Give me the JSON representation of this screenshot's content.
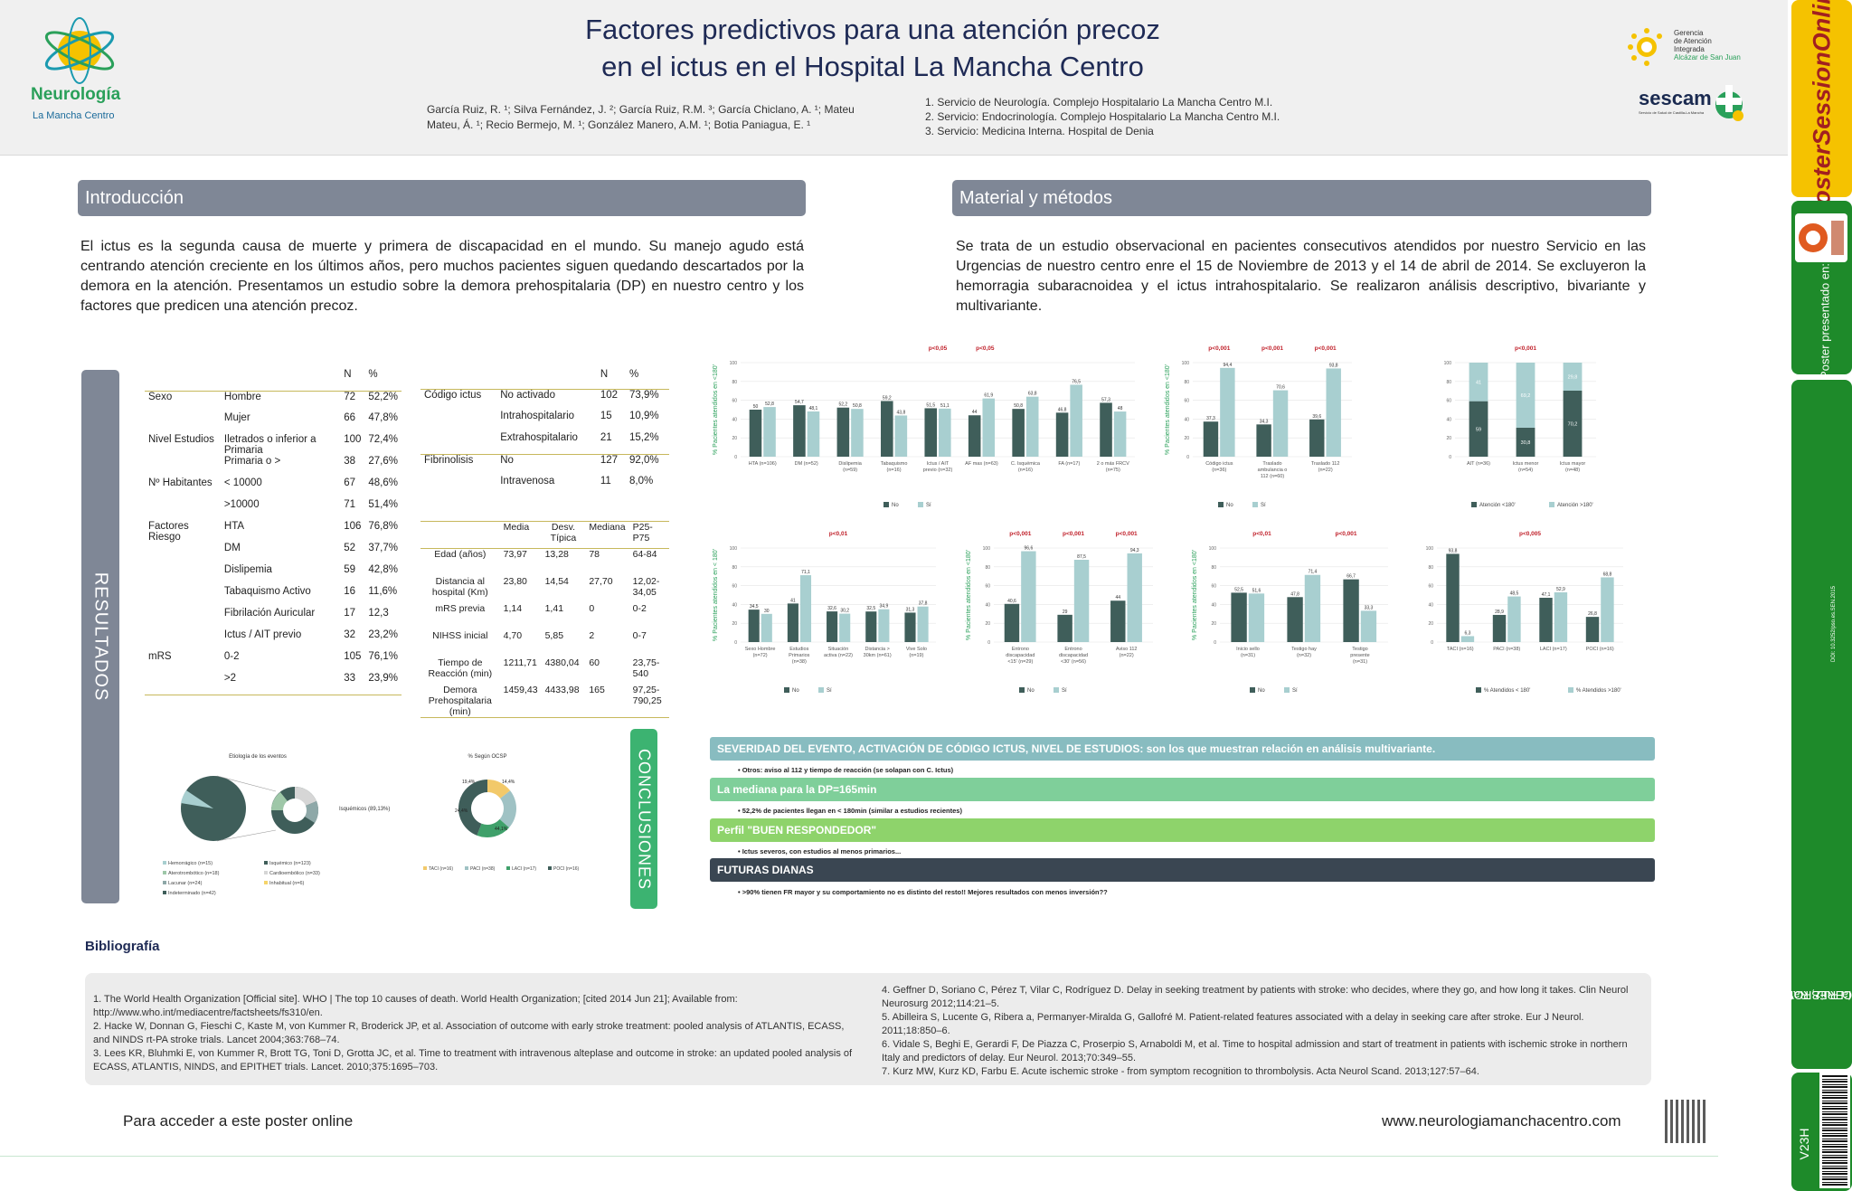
{
  "header": {
    "title_l1": "Factores predictivos para una atención precoz",
    "title_l2": "en el ictus en el Hospital La Mancha Centro",
    "authors": "García Ruiz, R. ¹; Silva Fernández, J. ²; García Ruiz, R.M. ³; García Chiclano, A. ¹; Mateu Mateu, Á. ¹; Recio Bermejo, M. ¹; González Manero, A.M. ¹; Botia Paniagua, E. ¹",
    "affil1": "1. Servicio de Neurología. Complejo Hospitalario La Mancha Centro M.I.",
    "affil2": "2. Servicio: Endocrinología. Complejo Hospitalario La Mancha Centro M.I.",
    "affil3": "3. Servicio: Medicina Interna. Hospital de Denia",
    "logo_left_word": "Neurología",
    "logo_left_sub": "La Mancha Centro",
    "logo_right_l1": "Gerencia",
    "logo_right_l2": "de Atención",
    "logo_right_l3": "Integrada",
    "logo_right_l4": "Alcázar de San Juan",
    "logo_sescam": "sescam",
    "logo_sescam_sub": "Servicio de Salud de Castilla-La Mancha"
  },
  "rail": {
    "brand": "PosterSessionOnline",
    "brand_tld": ".com",
    "presented": "Poster presentado en:",
    "category": "ENFERMEDADES CEREBROVASCULARES P6",
    "author": "García Ruiz, Rafael",
    "doi": "DOI: 10.3252/pso.es.SEN.2015",
    "code": "V23H",
    "code_bottom": "P6Fasen"
  },
  "intro": {
    "title": "Introducción",
    "text": "El ictus es la segunda causa de muerte y primera de discapacidad en el mundo. Su manejo agudo está centrando atención creciente en los últimos años, pero muchos pacientes siguen quedando descartados por la demora en la atención. Presentamos un estudio sobre la demora prehospitalaria (DP) en nuestro centro y los factores que predicen una atención precoz."
  },
  "methods": {
    "title": "Material y métodos",
    "text": "Se trata de un estudio observacional en pacientes consecutivos atendidos por nuestro Servicio en las Urgencias de nuestro centro enre el 15 de Noviembre de 2013 y el 14 de abril de 2014. Se excluyeron la hemorragia subaracnoidea y el ictus intrahospitalario. Se realizaron análisis descriptivo, bivariante y multivariante."
  },
  "results": {
    "title": "RESULTADOS"
  },
  "table1": {
    "headers": [
      "",
      "",
      "N",
      "%"
    ],
    "rows": [
      [
        "Sexo",
        "Hombre",
        "72",
        "52,2%"
      ],
      [
        "",
        "Mujer",
        "66",
        "47,8%"
      ],
      [
        "Nivel Estudios",
        "Iletrados o inferior a Primaria",
        "100",
        "72,4%"
      ],
      [
        "",
        "Primaria o >",
        "38",
        "27,6%"
      ],
      [
        "Nº Habitantes",
        "< 10000",
        "67",
        "48,6%"
      ],
      [
        "",
        ">10000",
        "71",
        "51,4%"
      ],
      [
        "Factores Riesgo",
        "HTA",
        "106",
        "76,8%"
      ],
      [
        "",
        "DM",
        "52",
        "37,7%"
      ],
      [
        "",
        "Dislipemia",
        "59",
        "42,8%"
      ],
      [
        "",
        "Tabaquismo Activo",
        "16",
        "11,6%"
      ],
      [
        "",
        "Fibrilación Auricular",
        "17",
        "12,3"
      ],
      [
        "",
        "Ictus / AIT previo",
        "32",
        "23,2%"
      ],
      [
        "mRS",
        "0-2",
        "105",
        "76,1%"
      ],
      [
        "",
        ">2",
        "33",
        "23,9%"
      ]
    ]
  },
  "table2": {
    "headers": [
      "",
      "",
      "N",
      "%"
    ],
    "rows": [
      [
        "Código ictus",
        "No activado",
        "102",
        "73,9%"
      ],
      [
        "",
        "Intrahospitalario",
        "15",
        "10,9%"
      ],
      [
        "",
        "Extrahospitalario",
        "21",
        "15,2%"
      ],
      [
        "Fibrinolisis",
        "No",
        "127",
        "92,0%"
      ],
      [
        "",
        "Intravenosa",
        "11",
        "8,0%"
      ]
    ]
  },
  "table3": {
    "headers": [
      "",
      "Media",
      "Desv. Típica",
      "Mediana",
      "P25-P75"
    ],
    "rows": [
      [
        "Edad (años)",
        "73,97",
        "13,28",
        "78",
        "64-84"
      ],
      [
        "Distancia al hospital (Km)",
        "23,80",
        "14,54",
        "27,70",
        "12,02-34,05"
      ],
      [
        "mRS previa",
        "1,14",
        "1,41",
        "0",
        "0-2"
      ],
      [
        "NIHSS inicial",
        "4,70",
        "5,85",
        "2",
        "0-7"
      ],
      [
        "Tiempo de Reacción (min)",
        "1211,71",
        "4380,04",
        "60",
        "23,75-540"
      ],
      [
        "Demora Prehospitalaria (min)",
        "1459,43",
        "4433,98",
        "165",
        "97,25-790,25"
      ]
    ]
  },
  "pies": {
    "pie1_title": "Etiología de los eventos",
    "pie1_side": "Isquémicos (89,13%)",
    "pie1_legend": [
      "Hemorrágico (n=15)",
      "Isquémico (n=123)",
      "Aterotrombótico (n=18)",
      "Cardioembólico (n=33)",
      "Lacunar (n=24)",
      "Inhabitual (n=6)",
      "Indeterminado (n=42)"
    ],
    "pie2_title": "% Según OCSP",
    "pie2_values": [
      "19,4%",
      "14,4%",
      "24,4%",
      "44,1%"
    ],
    "pie2_legend": [
      "TACI (n=16)",
      "PACI (n=38)",
      "LACI (n=17)",
      "POCI (n=16)"
    ]
  },
  "chart_data": [
    {
      "type": "bar",
      "id": "c1",
      "ylabel": "% Pacientes atendidos en <180'",
      "categories": [
        "HTA (n=106)",
        "DM (n=52)",
        "Dislipemia (n=59)",
        "Tabaquismo (n=16)",
        "Ictus / AIT previo (n=32)",
        "AF mas (n=63)",
        "C. Isquémica (n=16)",
        "FA (n=17)",
        "2 o más FRCV (n=75)"
      ],
      "series": [
        {
          "name": "No",
          "values": [
            50,
            54.7,
            52.2,
            59.2,
            51.5,
            44,
            50.8,
            46.8,
            57.3
          ]
        },
        {
          "name": "Sí",
          "values": [
            52.8,
            48.1,
            50.8,
            43.8,
            51.1,
            61.9,
            63.8,
            76.5,
            48
          ]
        }
      ],
      "annotations": [
        "p<0,05",
        "p<0,05"
      ],
      "ylim": [
        0,
        100
      ]
    },
    {
      "type": "bar",
      "id": "c2",
      "ylabel": "% Pacientes atendidos en <180'",
      "categories": [
        "Código ictus (n=36)",
        "Traslado ambulancia o 112 (n=60)",
        "Traslado 112 (n=22)"
      ],
      "series": [
        {
          "name": "No",
          "values": [
            37.3,
            34.3,
            39.6
          ]
        },
        {
          "name": "Sí",
          "values": [
            94.4,
            70.6,
            93.8
          ]
        }
      ],
      "annotations": [
        "p<0,001",
        "p<0,001",
        "p<0,001"
      ],
      "ylim": [
        0,
        100
      ]
    },
    {
      "type": "bar",
      "id": "c3",
      "stacked": true,
      "categories": [
        "AIT (n=36)",
        "Ictus menor (n=54)",
        "Ictus mayor (n=48)"
      ],
      "series": [
        {
          "name": "Atención <180'",
          "values": [
            59,
            30.8,
            70.2
          ]
        },
        {
          "name": "Atención >180'",
          "values": [
            41,
            69.2,
            29.8
          ]
        }
      ],
      "annotations": [
        "p<0,001"
      ],
      "ylim": [
        0,
        100
      ]
    },
    {
      "type": "bar",
      "id": "c4",
      "ylabel": "% Pacientes atendidos en < 180'",
      "categories": [
        "Sexo Hombre (n=72)",
        "Estudios Primarios (n=38)",
        "Situación activa (n=22)",
        "Distancia > 30km (n=61)",
        "Vive Solo (n=19)"
      ],
      "series": [
        {
          "name": "No",
          "values": [
            34.5,
            41,
            32.6,
            32.5,
            31.3
          ]
        },
        {
          "name": "Sí",
          "values": [
            30,
            71.1,
            30.2,
            34.9,
            37.8
          ]
        }
      ],
      "annotations": [
        "p<0,01"
      ],
      "ylim": [
        0,
        100
      ]
    },
    {
      "type": "bar",
      "id": "c5",
      "ylabel": "% Pacientes atendidos en <180'",
      "categories": [
        "Entrono discapacidad <15' (n=29)",
        "Entrono discapacidad <30' (n=56)",
        "Aviso 112 (n=22)"
      ],
      "series": [
        {
          "name": "No",
          "values": [
            40.6,
            29,
            44
          ]
        },
        {
          "name": "Sí",
          "values": [
            96.6,
            87.5,
            94.3
          ]
        }
      ],
      "annotations": [
        "p<0,001",
        "p<0,001",
        "p<0,001"
      ],
      "ylim": [
        0,
        100
      ]
    },
    {
      "type": "bar",
      "id": "c6",
      "ylabel": "% Pacientes atendidos en <180'",
      "categories": [
        "Inicio sello (n=31)",
        "Testigo hay (n=32)",
        "Testigo presente (n=31)"
      ],
      "series": [
        {
          "name": "No",
          "values": [
            52.5,
            47.8,
            66.7
          ]
        },
        {
          "name": "Sí",
          "values": [
            51.6,
            71.4,
            33.3
          ]
        }
      ],
      "annotations": [
        "p<0,01",
        "p<0,001"
      ],
      "ylim": [
        0,
        100
      ]
    },
    {
      "type": "bar",
      "id": "c7",
      "stacked": false,
      "categories": [
        "TACI (n=16)",
        "PACI (n=38)",
        "LACI (n=17)",
        "POCI (n=16)"
      ],
      "series": [
        {
          "name": "% Atendidos < 180'",
          "values": [
            93.8,
            28.9,
            47.1,
            26.8
          ]
        },
        {
          "name": "% Atendidos >180'",
          "values": [
            6.3,
            48.5,
            52.9,
            68.8
          ]
        }
      ],
      "annotations": [
        "p<0,005"
      ],
      "ylim": [
        0,
        100
      ]
    }
  ],
  "conclusions": {
    "title": "CONCLUSIONES",
    "bar1": "SEVERIDAD DEL EVENTO, ACTIVACIÓN DE CÓDIGO ICTUS, NIVEL DE ESTUDIOS: son los que muestran relación en análisis multivariante.",
    "sub1": "Otros: aviso al 112 y tiempo de reacción (se solapan con C. Ictus)",
    "bar2": "La mediana para la DP=165min",
    "sub2": "52,2% de pacientes llegan en < 180min (similar a estudios recientes)",
    "bar3": "Perfil \"BUEN RESPONDEDOR\"",
    "sub3": "Ictus severos, con estudios al menos primarios...",
    "bar4": "FUTURAS DIANAS",
    "sub4": ">90% tienen FR mayor y su comportamiento no es distinto del resto!! Mejores resultados con menos inversión??",
    "color1": "#88bcc0",
    "color2": "#7fcf9a",
    "color3": "#8ed36b",
    "color4": "#3a4652"
  },
  "bibliography": {
    "title": "Bibliografía",
    "left": [
      "1. The World Health Organization [Official site]. WHO | The top 10 causes of death. World Health Organization; [cited 2014 Jun 21]; Available from: http://www.who.int/mediacentre/factsheets/fs310/en.",
      "2. Hacke W, Donnan G, Fieschi C, Kaste M, von Kummer R, Broderick JP, et al. Association of outcome with early stroke treatment: pooled analysis of ATLANTIS, ECASS, and NINDS rt-PA stroke trials. Lancet 2004;363:768–74.",
      "3. Lees KR, Bluhmki E, von Kummer R, Brott TG, Toni D, Grotta JC, et al. Time to treatment with intravenous alteplase and outcome in stroke: an updated pooled analysis of ECASS, ATLANTIS, NINDS, and EPITHET trials. Lancet. 2010;375:1695–703."
    ],
    "right": [
      "4. Geffner D, Soriano C, Pérez T, Vilar C, Rodríguez D. Delay in seeking treatment by patients with stroke: who decides, where they go, and how long it takes. Clin Neurol Neurosurg 2012;114:21–5.",
      "5. Abilleira S, Lucente G, Ribera a, Permanyer-Miralda G, Gallofré M. Patient-related features associated with a delay in seeking care after stroke. Eur J Neurol. 2011;18:850–6.",
      "6. Vidale S, Beghi E, Gerardi F, De Piazza C, Proserpio S, Arnaboldi M, et al. Time to hospital admission and start of treatment in patients with ischemic stroke in northern Italy and predictors of delay. Eur Neurol. 2013;70:349–55.",
      "7. Kurz MW, Kurz KD, Farbu E. Acute ischemic stroke - from symptom recognition to thrombolysis. Acta Neurol Scand. 2013;127:57–64."
    ]
  },
  "footer": {
    "left": "Para acceder a este poster online",
    "right": "www.neurologiamanchacentro.com"
  }
}
